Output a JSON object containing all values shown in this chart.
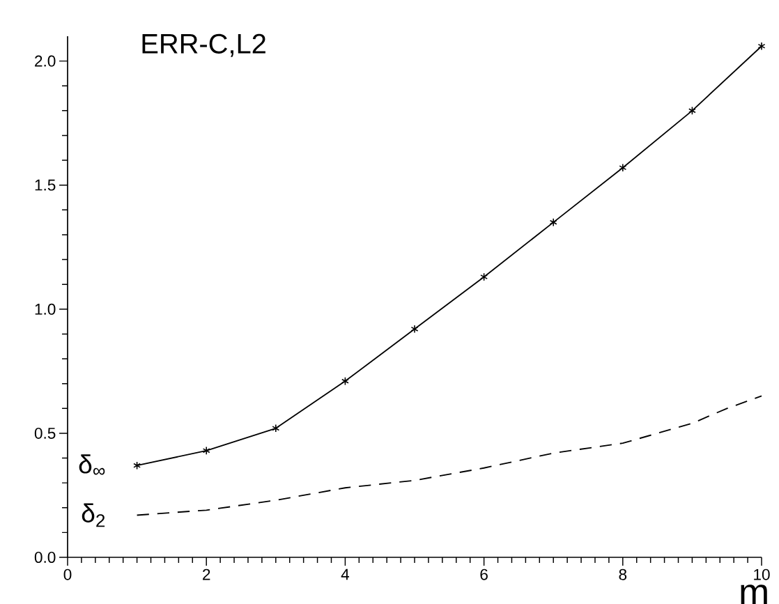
{
  "chart_data": {
    "type": "line",
    "title": "ERR-C,L2",
    "xlabel": "m",
    "x": [
      1,
      2,
      3,
      4,
      5,
      6,
      7,
      8,
      9,
      10
    ],
    "series": [
      {
        "name": "δ$_{∞}$",
        "color": "#000000",
        "marker": "cross",
        "line_style": "solid",
        "values": [
          0.37,
          0.43,
          0.52,
          0.71,
          0.92,
          1.13,
          1.35,
          1.57,
          1.8,
          2.06
        ]
      },
      {
        "name": "δ$_{2}$",
        "color": "#000000",
        "marker": "none",
        "line_style": "dashed",
        "x": [
          1,
          2,
          3,
          4,
          5,
          6,
          7,
          8,
          9,
          9.5,
          10
        ],
        "values": [
          0.17,
          0.19,
          0.23,
          0.28,
          0.31,
          0.36,
          0.42,
          0.46,
          0.54,
          0.6,
          0.65
        ]
      }
    ],
    "xlim": [
      0,
      10
    ],
    "ylim": [
      0,
      2.1
    ],
    "xticks": [
      0,
      2,
      4,
      6,
      8,
      10
    ],
    "yticks": [
      {
        "value": 0,
        "label": "0.0"
      },
      {
        "value": 0.5,
        "label": "0.5"
      },
      {
        "value": 1.0,
        "label": "1.0"
      },
      {
        "value": 1.5,
        "label": "1.5"
      },
      {
        "value": 2.0,
        "label": "2.0"
      }
    ],
    "grid": false
  }
}
